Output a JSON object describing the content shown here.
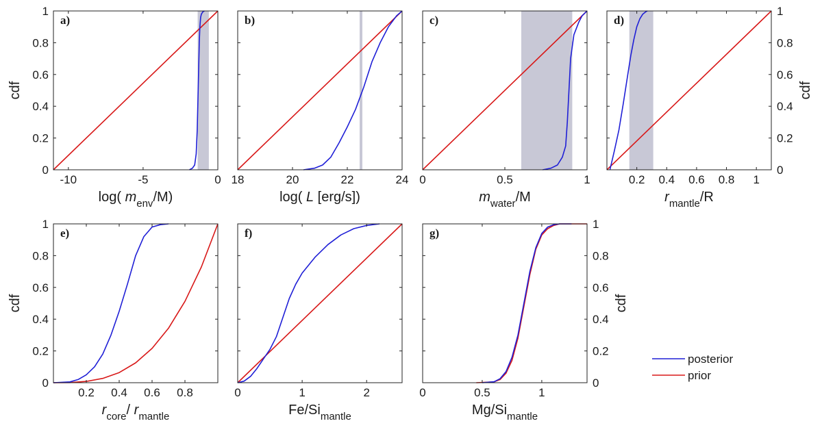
{
  "legend": {
    "entries": [
      {
        "label": "posterior",
        "color": "#1f1fd6"
      },
      {
        "label": "prior",
        "color": "#d81818"
      }
    ]
  },
  "chart_data": [
    {
      "id": "a",
      "panel_label": "a)",
      "type": "line",
      "xlim": [
        -11,
        0
      ],
      "ylim": [
        0,
        1
      ],
      "xticks": [
        -10,
        -5,
        0
      ],
      "xtick_labels": [
        "-10",
        "-5",
        "0"
      ],
      "yticks": [
        0,
        0.2,
        0.4,
        0.6,
        0.8,
        1
      ],
      "ytick_labels": [
        "0",
        "0.2",
        "0.4",
        "0.6",
        "0.8",
        "1"
      ],
      "ylabel_left": "cdf",
      "ylabel_right": "",
      "xlabel": {
        "pre": "log( ",
        "it": "m",
        "sub": "env",
        "post": "/M)"
      },
      "band": [
        -1.35,
        -0.6
      ],
      "series": [
        {
          "name": "prior",
          "color": "#d81818",
          "x": [
            -11,
            0
          ],
          "y": [
            0,
            1
          ]
        },
        {
          "name": "posterior",
          "color": "#1f1fd6",
          "x": [
            -1.9,
            -1.7,
            -1.55,
            -1.45,
            -1.38,
            -1.33,
            -1.28,
            -1.24,
            -1.2,
            -1.15,
            -1.1,
            -1.0,
            -0.9
          ],
          "y": [
            0,
            0.01,
            0.03,
            0.1,
            0.25,
            0.45,
            0.65,
            0.8,
            0.9,
            0.96,
            0.98,
            0.995,
            1
          ]
        }
      ]
    },
    {
      "id": "b",
      "panel_label": "b)",
      "type": "line",
      "xlim": [
        18,
        24
      ],
      "ylim": [
        0,
        1
      ],
      "xticks": [
        18,
        20,
        22,
        24
      ],
      "xtick_labels": [
        "18",
        "20",
        "22",
        "24"
      ],
      "yticks": [
        0,
        0.2,
        0.4,
        0.6,
        0.8,
        1
      ],
      "ytick_labels": [],
      "ylabel_left": "",
      "ylabel_right": "",
      "xlabel": {
        "pre": "log( ",
        "it": "L",
        "sub": "",
        "post": " [erg/s])"
      },
      "band": [
        22.45,
        22.55
      ],
      "series": [
        {
          "name": "prior",
          "color": "#d81818",
          "x": [
            18,
            24
          ],
          "y": [
            0,
            1
          ]
        },
        {
          "name": "posterior",
          "color": "#1f1fd6",
          "x": [
            20.4,
            20.8,
            21.1,
            21.4,
            21.7,
            22.0,
            22.3,
            22.6,
            22.9,
            23.2,
            23.5,
            23.8,
            24.0
          ],
          "y": [
            0,
            0.01,
            0.03,
            0.08,
            0.17,
            0.27,
            0.38,
            0.52,
            0.68,
            0.8,
            0.9,
            0.97,
            1
          ]
        }
      ]
    },
    {
      "id": "c",
      "panel_label": "c)",
      "type": "line",
      "xlim": [
        0,
        1
      ],
      "ylim": [
        0,
        1
      ],
      "xticks": [
        0,
        0.5,
        1
      ],
      "xtick_labels": [
        "0",
        "0.5",
        "1"
      ],
      "yticks": [
        0,
        0.2,
        0.4,
        0.6,
        0.8,
        1
      ],
      "ytick_labels": [],
      "ylabel_left": "",
      "ylabel_right": "",
      "xlabel": {
        "pre": "",
        "it": "m",
        "sub": "water",
        "post": "/M"
      },
      "band": [
        0.6,
        0.91
      ],
      "series": [
        {
          "name": "prior",
          "color": "#d81818",
          "x": [
            0,
            1
          ],
          "y": [
            0,
            1
          ]
        },
        {
          "name": "posterior",
          "color": "#1f1fd6",
          "x": [
            0.73,
            0.78,
            0.82,
            0.85,
            0.87,
            0.88,
            0.89,
            0.9,
            0.92,
            0.95,
            0.97,
            0.99,
            1.0
          ],
          "y": [
            0,
            0.01,
            0.03,
            0.08,
            0.15,
            0.3,
            0.5,
            0.7,
            0.85,
            0.93,
            0.97,
            0.99,
            1
          ]
        }
      ]
    },
    {
      "id": "d",
      "panel_label": "d)",
      "type": "line",
      "xlim": [
        0,
        1.1
      ],
      "ylim": [
        0,
        1
      ],
      "xticks": [
        0.2,
        0.4,
        0.6,
        0.8,
        1
      ],
      "xtick_labels": [
        "0.2",
        "0.4",
        "0.6",
        "0.8",
        "1"
      ],
      "yticks": [
        0,
        0.2,
        0.4,
        0.6,
        0.8,
        1
      ],
      "ytick_labels": [
        "0",
        "0.2",
        "0.4",
        "0.6",
        "0.8",
        "1"
      ],
      "ylabel_left": "",
      "ylabel_right": "cdf",
      "right_ticks": true,
      "xlabel": {
        "pre": "",
        "it": "r",
        "sub": "mantle",
        "post": "/R"
      },
      "band": [
        0.15,
        0.31
      ],
      "series": [
        {
          "name": "prior",
          "color": "#d81818",
          "x": [
            0,
            1.1
          ],
          "y": [
            0,
            1
          ]
        },
        {
          "name": "posterior",
          "color": "#1f1fd6",
          "x": [
            0.02,
            0.05,
            0.08,
            0.11,
            0.14,
            0.16,
            0.18,
            0.2,
            0.22,
            0.24,
            0.26,
            0.27
          ],
          "y": [
            0,
            0.12,
            0.25,
            0.42,
            0.6,
            0.72,
            0.82,
            0.9,
            0.95,
            0.98,
            0.995,
            1
          ]
        }
      ]
    },
    {
      "id": "e",
      "panel_label": "e)",
      "type": "line",
      "xlim": [
        0,
        1
      ],
      "ylim": [
        0,
        1
      ],
      "xticks": [
        0.2,
        0.4,
        0.6,
        0.8
      ],
      "xtick_labels": [
        "0.2",
        "0.4",
        "0.6",
        "0.8"
      ],
      "yticks": [
        0,
        0.2,
        0.4,
        0.6,
        0.8,
        1
      ],
      "ytick_labels": [
        "0",
        "0.2",
        "0.4",
        "0.6",
        "0.8",
        "1"
      ],
      "ylabel_left": "cdf",
      "ylabel_right": "",
      "xlabel": {
        "pre": "",
        "it": "r",
        "sub": "core",
        "post": "/ ",
        "it2": "r",
        "sub2": "mantle"
      },
      "band": null,
      "series": [
        {
          "name": "prior",
          "color": "#d81818",
          "x": [
            0,
            0.1,
            0.2,
            0.3,
            0.4,
            0.5,
            0.6,
            0.7,
            0.8,
            0.9,
            1.0
          ],
          "y": [
            0,
            0.001,
            0.008,
            0.027,
            0.064,
            0.125,
            0.216,
            0.343,
            0.512,
            0.729,
            1
          ]
        },
        {
          "name": "posterior",
          "color": "#1f1fd6",
          "x": [
            0.0,
            0.1,
            0.15,
            0.2,
            0.25,
            0.3,
            0.35,
            0.4,
            0.45,
            0.5,
            0.55,
            0.6,
            0.65,
            0.7
          ],
          "y": [
            0,
            0.005,
            0.02,
            0.05,
            0.1,
            0.18,
            0.3,
            0.45,
            0.62,
            0.8,
            0.92,
            0.98,
            0.995,
            1
          ]
        }
      ]
    },
    {
      "id": "f",
      "panel_label": "f)",
      "type": "line",
      "xlim": [
        0,
        2.55
      ],
      "ylim": [
        0,
        1
      ],
      "xticks": [
        0,
        1,
        2
      ],
      "xtick_labels": [
        "0",
        "1",
        "2"
      ],
      "yticks": [
        0,
        0.2,
        0.4,
        0.6,
        0.8,
        1
      ],
      "ytick_labels": [],
      "ylabel_left": "",
      "ylabel_right": "",
      "xlabel": {
        "pre": "Fe/Si",
        "it": "",
        "sub": "mantle",
        "post": ""
      },
      "band": null,
      "series": [
        {
          "name": "prior",
          "color": "#d81818",
          "x": [
            0,
            2.55
          ],
          "y": [
            0,
            1
          ]
        },
        {
          "name": "posterior",
          "color": "#1f1fd6",
          "x": [
            0.0,
            0.1,
            0.2,
            0.3,
            0.4,
            0.5,
            0.6,
            0.7,
            0.8,
            0.9,
            1.0,
            1.2,
            1.4,
            1.6,
            1.8,
            2.0,
            2.2
          ],
          "y": [
            0,
            0.01,
            0.04,
            0.09,
            0.15,
            0.21,
            0.29,
            0.41,
            0.53,
            0.62,
            0.69,
            0.79,
            0.87,
            0.93,
            0.97,
            0.99,
            1
          ]
        }
      ]
    },
    {
      "id": "g",
      "panel_label": "g)",
      "type": "line",
      "xlim": [
        0,
        1.38
      ],
      "ylim": [
        0,
        1
      ],
      "xticks": [
        0,
        0.5,
        1
      ],
      "xtick_labels": [
        "0",
        "0.5",
        "1"
      ],
      "yticks": [
        0,
        0.2,
        0.4,
        0.6,
        0.8,
        1
      ],
      "ytick_labels": [
        "0",
        "0.2",
        "0.4",
        "0.6",
        "0.8",
        "1"
      ],
      "ylabel_left": "",
      "ylabel_right": "cdf",
      "right_ticks": true,
      "xlabel": {
        "pre": "Mg/Si",
        "it": "",
        "sub": "mantle",
        "post": ""
      },
      "band": null,
      "series": [
        {
          "name": "prior",
          "color": "#d81818",
          "x": [
            0.45,
            0.6,
            0.65,
            0.7,
            0.75,
            0.8,
            0.85,
            0.9,
            0.95,
            1.0,
            1.05,
            1.1,
            1.15,
            1.2,
            1.38
          ],
          "y": [
            0,
            0.005,
            0.02,
            0.06,
            0.14,
            0.28,
            0.48,
            0.68,
            0.84,
            0.93,
            0.97,
            0.99,
            1,
            1,
            1
          ]
        },
        {
          "name": "posterior",
          "color": "#1f1fd6",
          "x": [
            0.5,
            0.6,
            0.65,
            0.7,
            0.75,
            0.8,
            0.85,
            0.9,
            0.95,
            1.0,
            1.05,
            1.1,
            1.15,
            1.25
          ],
          "y": [
            0,
            0.006,
            0.025,
            0.07,
            0.16,
            0.3,
            0.5,
            0.7,
            0.85,
            0.94,
            0.98,
            0.995,
            1,
            1
          ]
        }
      ]
    }
  ]
}
